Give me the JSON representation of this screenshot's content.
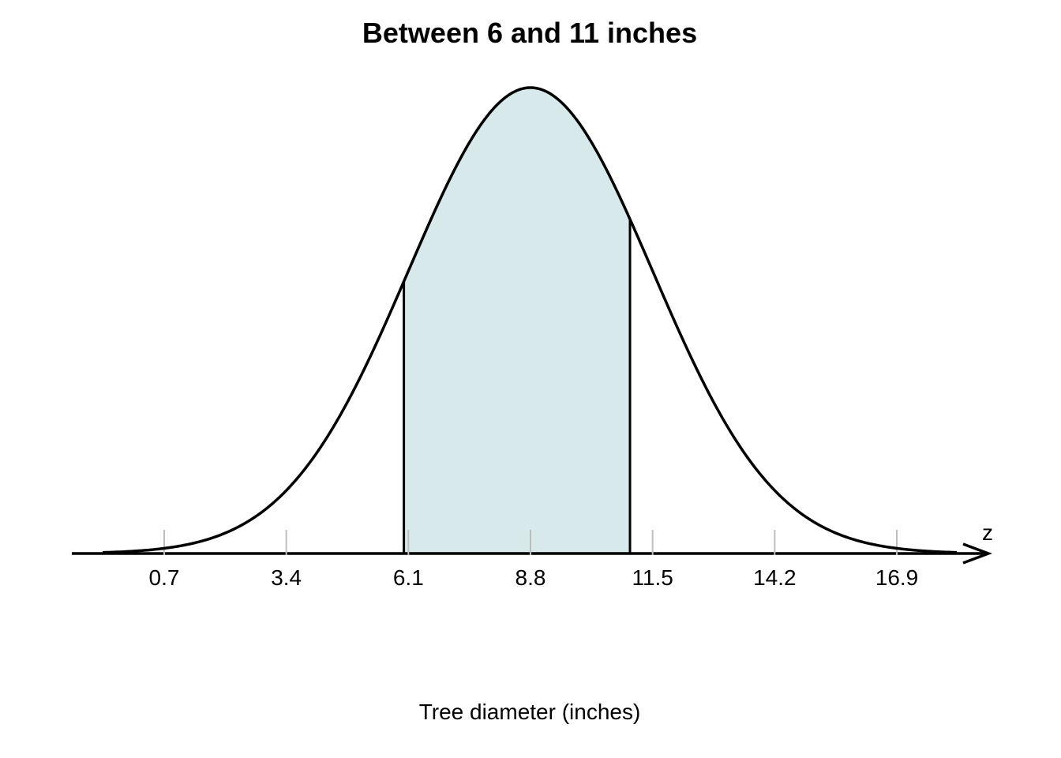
{
  "chart_data": {
    "type": "area",
    "title": "Between 6 and 11 inches",
    "xlabel": "Tree diameter (inches)",
    "axis_end_label": "z",
    "distribution": {
      "kind": "normal",
      "mean": 8.8,
      "sd": 2.7
    },
    "x_range": [
      -0.8,
      18.4
    ],
    "x_ticks": [
      {
        "value": 0.7,
        "label": "0.7"
      },
      {
        "value": 3.4,
        "label": "3.4"
      },
      {
        "value": 6.1,
        "label": "6.1"
      },
      {
        "value": 8.8,
        "label": "8.8"
      },
      {
        "value": 11.5,
        "label": "11.5"
      },
      {
        "value": 14.2,
        "label": "14.2"
      },
      {
        "value": 16.9,
        "label": "16.9"
      }
    ],
    "shaded_region": {
      "from": 6,
      "to": 11
    },
    "grid": false,
    "colors": {
      "curve": "#000000",
      "shade": "#d7e9ea",
      "tick": "#bdbdbd",
      "axis": "#000000"
    }
  }
}
